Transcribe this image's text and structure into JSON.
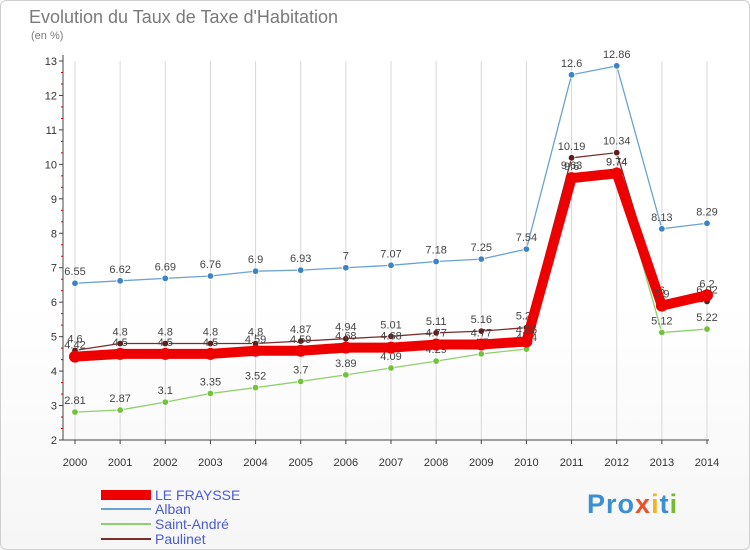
{
  "title": "Evolution du Taux de Taxe d'Habitation",
  "subtitle": "(en %)",
  "logo": {
    "letters": [
      "P",
      "r",
      "o",
      "x",
      "i",
      "t",
      "i"
    ],
    "colors": [
      "#3b8fd4",
      "#3b8fd4",
      "#3b8fd4",
      "#e8532a",
      "#f2b51b",
      "#3b8fd4",
      "#79b832"
    ]
  },
  "chart_data": {
    "type": "line",
    "x": [
      2000,
      2001,
      2002,
      2003,
      2004,
      2005,
      2006,
      2007,
      2008,
      2009,
      2010,
      2011,
      2012,
      2013,
      2014
    ],
    "ylim": [
      2,
      13
    ],
    "yticks": [
      2,
      3,
      4,
      5,
      6,
      7,
      8,
      9,
      10,
      11,
      12,
      13
    ],
    "grid": "vertical",
    "legend_position": "bottom-left",
    "series": [
      {
        "name": "Alban",
        "color": "#6aa2d2",
        "marker": "#3d84c6",
        "values": [
          6.55,
          6.62,
          6.69,
          6.76,
          6.9,
          6.93,
          7,
          7.07,
          7.18,
          7.25,
          7.54,
          12.6,
          12.86,
          8.13,
          8.29
        ],
        "labels": [
          "6.55",
          "6.62",
          "6.69",
          "6.76",
          "6.9",
          "6.93",
          "7",
          "7.07",
          "7.18",
          "7.25",
          "7.54",
          "12.6",
          "12.86",
          "8.13",
          "8.29"
        ]
      },
      {
        "name": "Paulinet",
        "color": "#7b2d2d",
        "marker": "#5e1c1c",
        "values": [
          4.6,
          4.8,
          4.8,
          4.8,
          4.8,
          4.87,
          4.94,
          5.01,
          5.11,
          5.16,
          5.26,
          10.19,
          10.34,
          6,
          6.02
        ],
        "labels": [
          "4.6",
          "4.8",
          "4.8",
          "4.8",
          "4.8",
          "4.87",
          "4.94",
          "5.01",
          "5.11",
          "5.16",
          "5.26",
          "10.19",
          "10.34",
          "6",
          "6.02"
        ]
      },
      {
        "name": "Saint-André",
        "color": "#8ed06a",
        "marker": "#72c23c",
        "values": [
          2.81,
          2.87,
          3.1,
          3.35,
          3.52,
          3.7,
          3.89,
          4.09,
          4.29,
          4.5,
          4.64,
          9.63,
          9.74,
          5.12,
          5.22
        ],
        "labels": [
          "2.81",
          "2.87",
          "3.1",
          "3.35",
          "3.52",
          "3.7",
          "3.89",
          "4.09",
          "4.29",
          "4.5",
          "4.64",
          "9.63",
          "9.74",
          "5.12",
          "5.22"
        ]
      },
      {
        "name": "LE FRAYSSE",
        "color": "#ee0000",
        "marker": "#ee0000",
        "thick": true,
        "values": [
          4.42,
          4.5,
          4.5,
          4.5,
          4.59,
          4.59,
          4.68,
          4.68,
          4.77,
          4.77,
          4.86,
          9.6,
          9.74,
          5.9,
          6.2
        ],
        "labels": [
          "4.42",
          "4.5",
          "4.5",
          "4.5",
          "4.59",
          "4.59",
          "4.68",
          "4.68",
          "4.77",
          "4.77",
          "4.86",
          "9.6",
          "9.74",
          "5.9",
          "6.2"
        ]
      }
    ],
    "legend_order": [
      "LE FRAYSSE",
      "Alban",
      "Saint-André",
      "Paulinet"
    ]
  }
}
